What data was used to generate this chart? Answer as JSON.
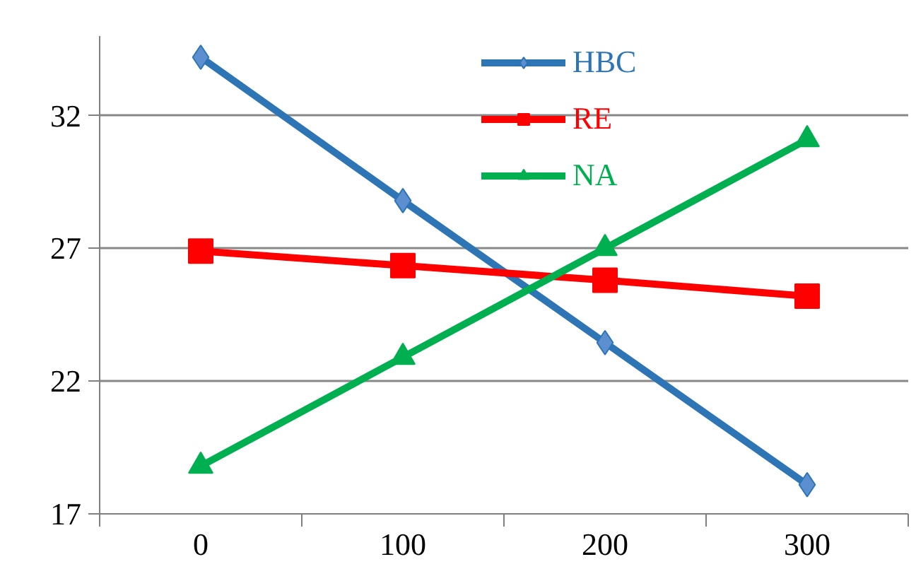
{
  "chart_data": {
    "type": "line",
    "categories": [
      "0",
      "100",
      "200",
      "300"
    ],
    "series": [
      {
        "name": "HBC",
        "color": "#2e75b6",
        "marker": "diamond",
        "values": [
          34.2,
          28.8,
          23.45,
          18.1
        ]
      },
      {
        "name": "RE",
        "color": "#ff0000",
        "marker": "square",
        "values": [
          26.9,
          26.35,
          25.8,
          25.2
        ]
      },
      {
        "name": "NA",
        "color": "#00b050",
        "marker": "triangle",
        "values": [
          18.8,
          22.9,
          27,
          31.1
        ]
      }
    ],
    "ylim": [
      17,
      35
    ],
    "yticks": [
      17,
      22,
      27,
      32
    ],
    "grid": "y",
    "legend": "top",
    "line_style": "solid"
  }
}
